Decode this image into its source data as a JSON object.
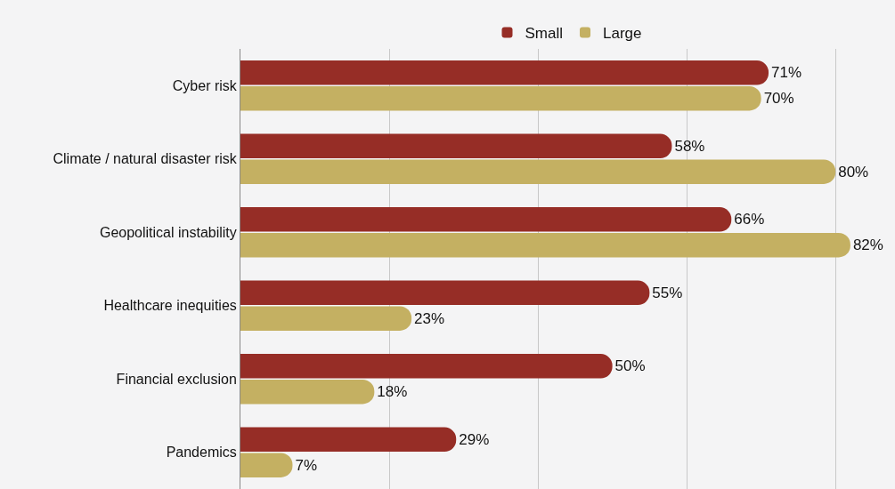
{
  "chart_data": {
    "type": "bar",
    "orientation": "horizontal",
    "categories": [
      "Cyber risk",
      "Climate / natural disaster risk",
      "Geopolitical instability",
      "Healthcare inequities",
      "Financial exclusion",
      "Pandemics"
    ],
    "series": [
      {
        "name": "Small",
        "color": "#962d26",
        "values": [
          71,
          58,
          66,
          55,
          50,
          29
        ],
        "value_labels": [
          "71%",
          "58%",
          "66%",
          "55%",
          "50%",
          "29%"
        ]
      },
      {
        "name": "Large",
        "color": "#c4b062",
        "values": [
          70,
          80,
          82,
          23,
          18,
          7
        ],
        "value_labels": [
          "70%",
          "80%",
          "82%",
          "23%",
          "18%",
          "7%"
        ]
      }
    ],
    "xlim": [
      0,
      88
    ],
    "xticks": [
      {
        "value": 0,
        "label": null
      },
      {
        "value": 20,
        "label": null
      },
      {
        "value": 40,
        "label": null
      },
      {
        "value": 60,
        "label": null
      },
      {
        "value": 80,
        "label": null
      }
    ],
    "grid": "x",
    "legend": "top",
    "tick_labels": "y"
  }
}
